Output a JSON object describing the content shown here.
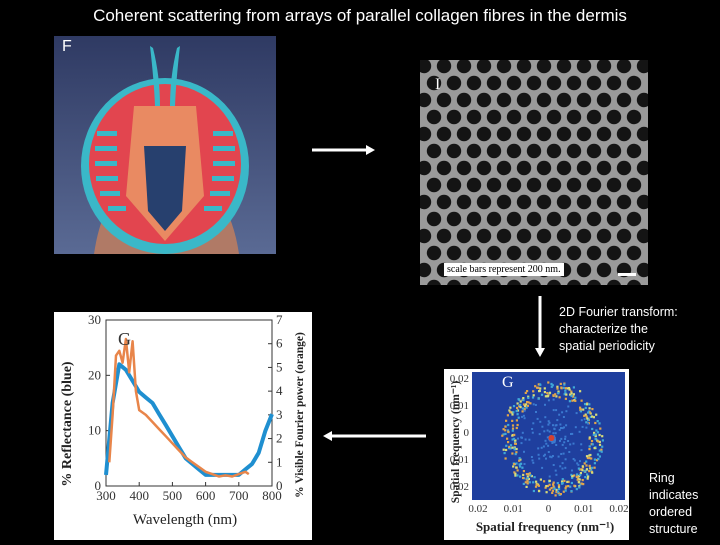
{
  "slide": {
    "title": "Coherent scattering from arrays of parallel collagen fibres in the dermis",
    "panel_f_label": "F",
    "panel_i_label": "I",
    "scale_text": "scale bars represent 200 nm.",
    "fourier_caption": [
      "2D Fourier transform:",
      "characterize the",
      "spatial periodicity"
    ],
    "ring_caption": [
      "Ring",
      "indicates",
      "ordered",
      "structure"
    ]
  },
  "colors": {
    "reflectance": "#1f8fd0",
    "fourier": "#e8854a"
  },
  "chart_data": [
    {
      "type": "line",
      "panel_label": "G",
      "xlabel": "Wavelength (nm)",
      "ylabel": "% Reflectance (blue)",
      "y2label": "% Visible Fourier power (orange)",
      "xlim": [
        300,
        800
      ],
      "ylim": [
        0,
        30
      ],
      "y2lim": [
        0,
        7
      ],
      "x_ticks": [
        "300",
        "400",
        "500",
        "600",
        "700",
        "800"
      ],
      "y_ticks": [
        "0",
        "10",
        "20",
        "30"
      ],
      "y2_ticks": [
        "0",
        "1",
        "2",
        "3",
        "4",
        "5",
        "6",
        "7"
      ],
      "series": [
        {
          "axis": "left",
          "x": [
            300,
            320,
            340,
            360,
            380,
            400,
            420,
            440,
            460,
            480,
            500,
            520,
            540,
            560,
            580,
            600,
            620,
            640,
            660,
            680,
            700,
            720,
            740,
            760,
            780,
            800
          ],
          "values": [
            2,
            15,
            22,
            21,
            19,
            17,
            16,
            15,
            13,
            11,
            9,
            7,
            5,
            4,
            3,
            2,
            2,
            2,
            2,
            2,
            2,
            3,
            4,
            6,
            10,
            13
          ]
        },
        {
          "axis": "right",
          "x": [
            310,
            320,
            330,
            340,
            350,
            360,
            370,
            380,
            390,
            400,
            420,
            440,
            460,
            480,
            500,
            520,
            540,
            560,
            580,
            600,
            620,
            640,
            660,
            680,
            700,
            720,
            730
          ],
          "values": [
            1,
            3,
            5.5,
            5.7,
            5.2,
            6.2,
            4.8,
            6.1,
            4,
            3.2,
            3,
            2.7,
            2.4,
            2.1,
            1.8,
            1.5,
            1.2,
            1.0,
            0.8,
            0.6,
            0.5,
            0.4,
            0.45,
            0.4,
            0.5,
            0.6,
            0.5
          ]
        }
      ]
    },
    {
      "type": "heatmap",
      "panel_label": "G",
      "xlabel": "Spatial frequency (nm⁻¹)",
      "ylabel": "Spatial frequency (nm⁻¹)",
      "x_ticks": [
        "0.02",
        "0.01",
        "0",
        "0.01",
        "0.02"
      ],
      "y_ticks": [
        "0.02",
        "0.01",
        "0",
        "0.01",
        "0.02"
      ]
    }
  ]
}
